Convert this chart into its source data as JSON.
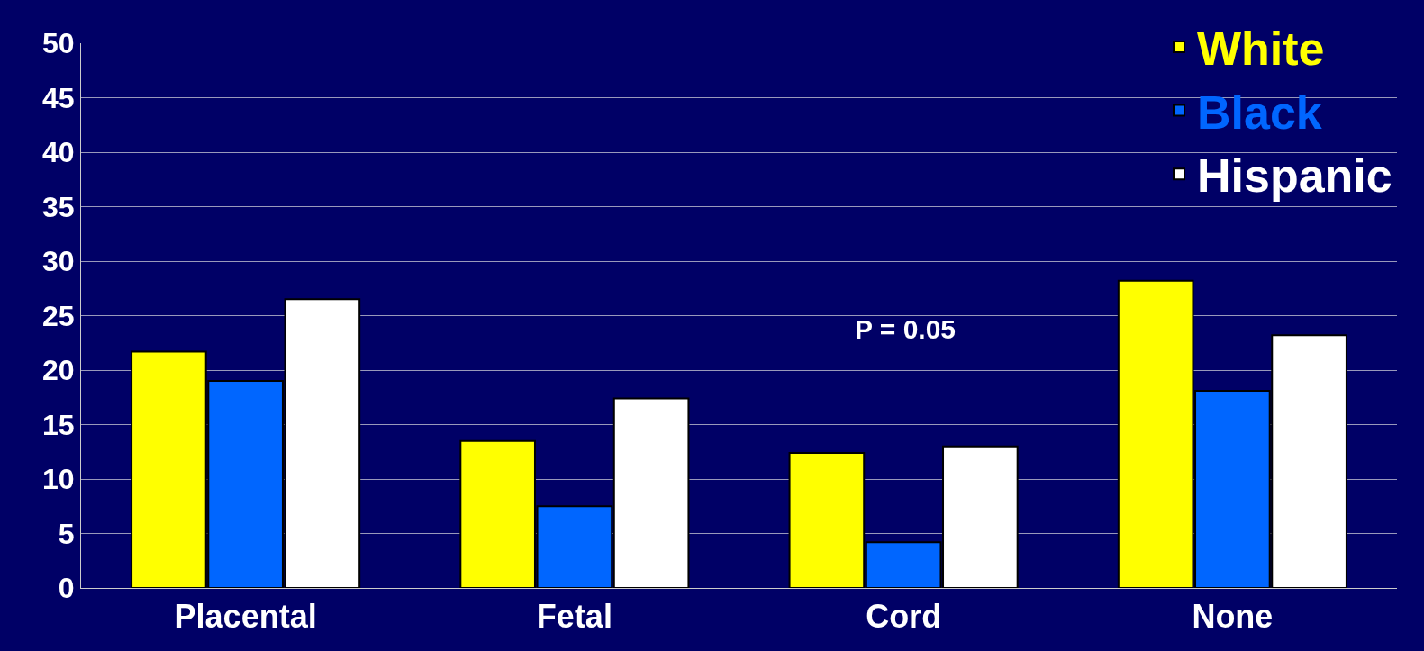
{
  "chart_data": {
    "type": "bar",
    "categories": [
      "Placental",
      "Fetal",
      "Cord",
      "None"
    ],
    "series": [
      {
        "name": "White",
        "color": "#ffff00",
        "values": [
          21.7,
          13.5,
          12.4,
          28.2
        ]
      },
      {
        "name": "Black",
        "color": "#0066ff",
        "values": [
          19.0,
          7.5,
          4.2,
          18.1
        ]
      },
      {
        "name": "Hispanic",
        "color": "#ffffff",
        "values": [
          26.5,
          17.4,
          13.0,
          23.2
        ]
      }
    ],
    "ylim": [
      0,
      50
    ],
    "yticks": [
      0,
      5,
      10,
      15,
      20,
      25,
      30,
      35,
      40,
      45,
      50
    ],
    "grid": "y",
    "legend": "top right",
    "annotations": [
      "P = 0.05"
    ]
  }
}
